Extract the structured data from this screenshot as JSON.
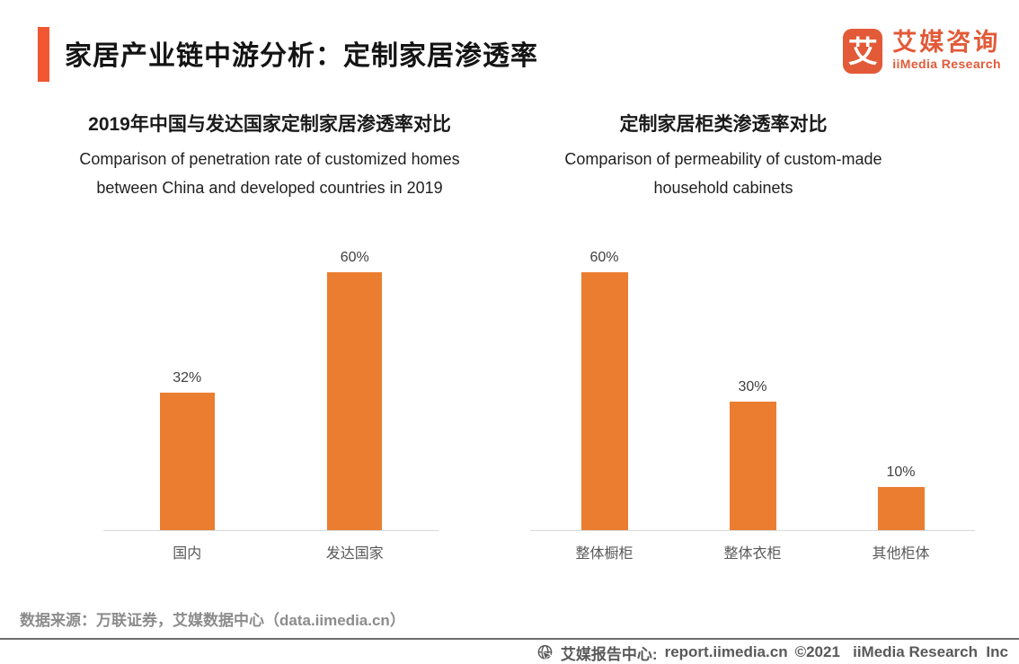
{
  "header": {
    "title": "家居产业链中游分析：定制家居渗透率",
    "logo": {
      "glyph": "艾",
      "name_cn": "艾媒咨询",
      "name_en": "iiMedia Research"
    }
  },
  "chart_data": [
    {
      "type": "bar",
      "title": "2019年中国与发达国家定制家居渗透率对比",
      "subtitle_lines": [
        "Comparison of penetration rate of customized homes",
        "between China and developed countries in 2019"
      ],
      "categories": [
        "国内",
        "发达国家"
      ],
      "values": [
        32,
        60
      ],
      "value_labels": [
        "32%",
        "60%"
      ],
      "xlabel": "",
      "ylabel": "",
      "ylim": [
        0,
        69
      ],
      "grid": false,
      "legend": false,
      "bar_color": "#EB7D30"
    },
    {
      "type": "bar",
      "title": "定制家居柜类渗透率对比",
      "subtitle_lines": [
        "Comparison of permeability of custom-made",
        "household cabinets"
      ],
      "categories": [
        "整体橱柜",
        "整体衣柜",
        "其他柜体"
      ],
      "values": [
        60,
        30,
        10
      ],
      "value_labels": [
        "60%",
        "30%",
        "10%"
      ],
      "xlabel": "",
      "ylabel": "",
      "ylim": [
        0,
        69
      ],
      "grid": false,
      "legend": false,
      "bar_color": "#EB7D30"
    }
  ],
  "footer": {
    "source": "数据来源：万联证券，艾媒数据中心（data.iimedia.cn）",
    "report_center_label": "艾媒报告中心:",
    "report_url": "report.iimedia.cn",
    "copyright": "©2021   iiMedia Research  Inc"
  },
  "colors": {
    "accent": "#F15733",
    "brand": "#E25A38",
    "bar": "#EB7D30",
    "axis_line": "#D9D9D9",
    "value_label": "#404040",
    "label": "#595959",
    "source_text": "#8C8C8C",
    "divider": "#6E6E6E",
    "footer_text": "#595959"
  }
}
